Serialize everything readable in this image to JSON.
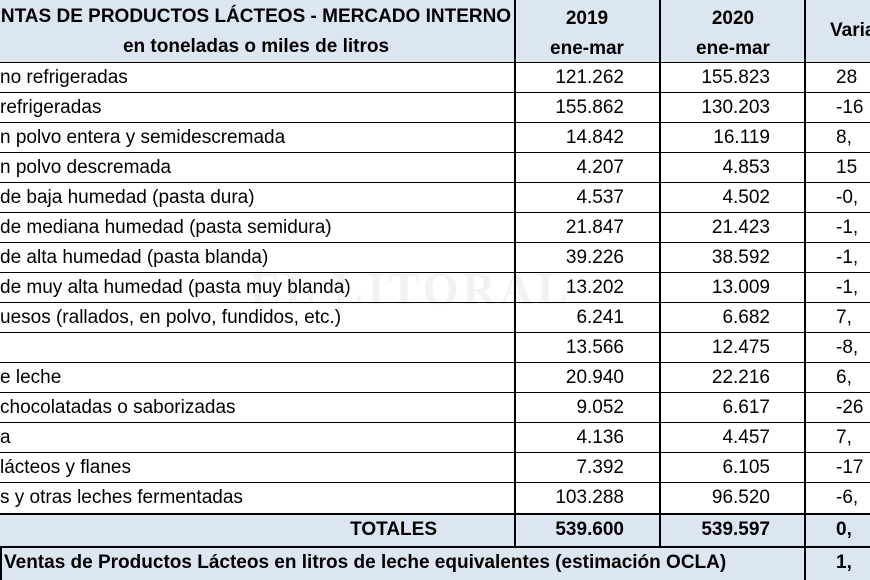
{
  "header": {
    "title_line1": "NTAS DE PRODUCTOS LÁCTEOS - MERCADO INTERNO",
    "title_line2": "en toneladas o miles de litros",
    "col_2019_year": "2019",
    "col_2019_period": "ene-mar",
    "col_2020_year": "2020",
    "col_2020_period": "ene-mar",
    "col_var": "Varia"
  },
  "rows": [
    {
      "label": "no refrigeradas",
      "v2019": "121.262",
      "v2020": "155.823",
      "var": "28"
    },
    {
      "label": "refrigeradas",
      "v2019": "155.862",
      "v2020": "130.203",
      "var": "-16"
    },
    {
      "label": "n polvo entera y semidescremada",
      "v2019": "14.842",
      "v2020": "16.119",
      "var": "8,"
    },
    {
      "label": "n polvo descremada",
      "v2019": "4.207",
      "v2020": "4.853",
      "var": "15"
    },
    {
      "label": " de baja humedad (pasta dura)",
      "v2019": "4.537",
      "v2020": "4.502",
      "var": "-0,"
    },
    {
      "label": " de mediana humedad (pasta semidura)",
      "v2019": "21.847",
      "v2020": "21.423",
      "var": "-1,"
    },
    {
      "label": " de alta humedad (pasta blanda)",
      "v2019": "39.226",
      "v2020": "38.592",
      "var": "-1,"
    },
    {
      "label": " de muy alta humedad (pasta muy blanda)",
      "v2019": "13.202",
      "v2020": "13.009",
      "var": "-1,"
    },
    {
      "label": "uesos (rallados, en polvo, fundidos, etc.)",
      "v2019": "6.241",
      "v2020": "6.682",
      "var": "7,"
    },
    {
      "label": "",
      "v2019": "13.566",
      "v2020": "12.475",
      "var": "-8,"
    },
    {
      "label": "e leche",
      "v2019": "20.940",
      "v2020": "22.216",
      "var": "6,"
    },
    {
      "label": "chocolatadas o saborizadas",
      "v2019": "9.052",
      "v2020": "6.617",
      "var": "-26"
    },
    {
      "label": "a",
      "v2019": "4.136",
      "v2020": "4.457",
      "var": "7,"
    },
    {
      "label": " lácteos y flanes",
      "v2019": "7.392",
      "v2020": "6.105",
      "var": "-17"
    },
    {
      "label": "s y otras leches fermentadas",
      "v2019": "103.288",
      "v2020": "96.520",
      "var": "-6,"
    }
  ],
  "totals": {
    "label": "TOTALES",
    "v2019": "539.600",
    "v2020": "539.597",
    "var": "0,"
  },
  "footer": {
    "label": "Ventas de Productos Lácteos en litros de leche equivalentes (estimación OCLA)",
    "var": "1,"
  },
  "watermark": "EL LITORAL"
}
